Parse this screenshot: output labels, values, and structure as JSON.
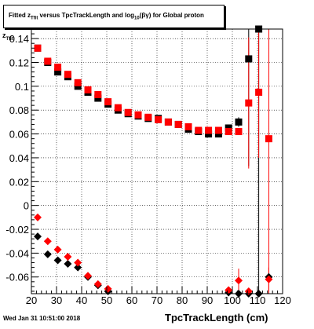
{
  "title": {
    "prefix": "Fitted  z",
    "sub1": "Tfit",
    "mid": " versus TpcTrackLength and log",
    "sub2": "10",
    "tail": "(βγ) for Global proton"
  },
  "footer": {
    "date": "Wed Jan 31 10:51:00 2018"
  },
  "axes": {
    "xlabel": "TpcTrackLength (cm)",
    "ylabel_main": "z",
    "ylabel_sub": "Tfit"
  },
  "colors": {
    "black_series": "#000000",
    "red_series": "#ff0000",
    "frame": "#000000",
    "grid": "#000000"
  },
  "chart_data": {
    "type": "scatter",
    "marker": "square / diamond",
    "xlim": [
      20,
      120
    ],
    "ylim": [
      -0.074,
      0.148
    ],
    "x_ticks": [
      20,
      30,
      40,
      50,
      60,
      70,
      80,
      90,
      100,
      110,
      120
    ],
    "y_ticks": [
      -0.06,
      -0.04,
      -0.02,
      0,
      0.02,
      0.04,
      0.06,
      0.08,
      0.1,
      0.12,
      0.14
    ],
    "grid": true,
    "series": [
      {
        "color": "black",
        "marker": "square",
        "points": [
          {
            "x": 22.5,
            "y": 0.132
          },
          {
            "x": 26.5,
            "y": 0.12
          },
          {
            "x": 30.5,
            "y": 0.112
          },
          {
            "x": 34.5,
            "y": 0.108
          },
          {
            "x": 38.5,
            "y": 0.1
          },
          {
            "x": 42.5,
            "y": 0.095
          },
          {
            "x": 46.5,
            "y": 0.09
          },
          {
            "x": 50.5,
            "y": 0.085
          },
          {
            "x": 54.5,
            "y": 0.08
          },
          {
            "x": 58.5,
            "y": 0.077
          },
          {
            "x": 62.5,
            "y": 0.075
          },
          {
            "x": 66.5,
            "y": 0.073
          },
          {
            "x": 70.5,
            "y": 0.073
          },
          {
            "x": 74.5,
            "y": 0.07
          },
          {
            "x": 78.5,
            "y": 0.068
          },
          {
            "x": 82.5,
            "y": 0.064
          },
          {
            "x": 86.5,
            "y": 0.062
          },
          {
            "x": 90.5,
            "y": 0.06
          },
          {
            "x": 94.5,
            "y": 0.06
          },
          {
            "x": 98.5,
            "y": 0.065
          },
          {
            "x": 102.5,
            "y": 0.07,
            "err": 0.004
          },
          {
            "x": 106.5,
            "y": 0.123,
            "err": 0.09
          },
          {
            "x": 110.5,
            "y": 0.148,
            "err": 0.22
          }
        ]
      },
      {
        "color": "red",
        "marker": "square",
        "points": [
          {
            "x": 22.5,
            "y": 0.132
          },
          {
            "x": 26.5,
            "y": 0.121
          },
          {
            "x": 30.5,
            "y": 0.116
          },
          {
            "x": 34.5,
            "y": 0.11
          },
          {
            "x": 38.5,
            "y": 0.103
          },
          {
            "x": 42.5,
            "y": 0.097
          },
          {
            "x": 46.5,
            "y": 0.093
          },
          {
            "x": 50.5,
            "y": 0.087
          },
          {
            "x": 54.5,
            "y": 0.082
          },
          {
            "x": 58.5,
            "y": 0.078
          },
          {
            "x": 62.5,
            "y": 0.076
          },
          {
            "x": 66.5,
            "y": 0.074
          },
          {
            "x": 70.5,
            "y": 0.072
          },
          {
            "x": 74.5,
            "y": 0.07
          },
          {
            "x": 78.5,
            "y": 0.068
          },
          {
            "x": 82.5,
            "y": 0.066
          },
          {
            "x": 86.5,
            "y": 0.063
          },
          {
            "x": 90.5,
            "y": 0.063
          },
          {
            "x": 94.5,
            "y": 0.063
          },
          {
            "x": 98.5,
            "y": 0.062
          },
          {
            "x": 102.5,
            "y": 0.062
          },
          {
            "x": 106.5,
            "y": 0.086,
            "err": 0.055
          },
          {
            "x": 110.5,
            "y": 0.095,
            "err": 0.055
          },
          {
            "x": 114.5,
            "y": 0.056,
            "err": 0.15
          }
        ]
      },
      {
        "color": "black",
        "marker": "diamond",
        "points": [
          {
            "x": 22.5,
            "y": -0.026
          },
          {
            "x": 26.5,
            "y": -0.041
          },
          {
            "x": 30.5,
            "y": -0.046
          },
          {
            "x": 34.5,
            "y": -0.049
          },
          {
            "x": 38.5,
            "y": -0.052
          },
          {
            "x": 42.5,
            "y": -0.06
          },
          {
            "x": 46.5,
            "y": -0.067
          },
          {
            "x": 50.5,
            "y": -0.072
          },
          {
            "x": 98.5,
            "y": -0.073
          },
          {
            "x": 102.5,
            "y": -0.074
          },
          {
            "x": 106.5,
            "y": -0.074
          },
          {
            "x": 110.5,
            "y": -0.074
          },
          {
            "x": 114.5,
            "y": -0.06
          }
        ]
      },
      {
        "color": "red",
        "marker": "diamond",
        "points": [
          {
            "x": 22.5,
            "y": -0.01
          },
          {
            "x": 26.5,
            "y": -0.03
          },
          {
            "x": 30.5,
            "y": -0.037
          },
          {
            "x": 34.5,
            "y": -0.043
          },
          {
            "x": 38.5,
            "y": -0.048
          },
          {
            "x": 42.5,
            "y": -0.059
          },
          {
            "x": 46.5,
            "y": -0.066
          },
          {
            "x": 50.5,
            "y": -0.07
          },
          {
            "x": 98.5,
            "y": -0.071
          },
          {
            "x": 102.5,
            "y": -0.063,
            "err": 0.01
          },
          {
            "x": 106.5,
            "y": -0.072
          },
          {
            "x": 114.5,
            "y": -0.062,
            "err": 0.01
          }
        ]
      }
    ]
  }
}
